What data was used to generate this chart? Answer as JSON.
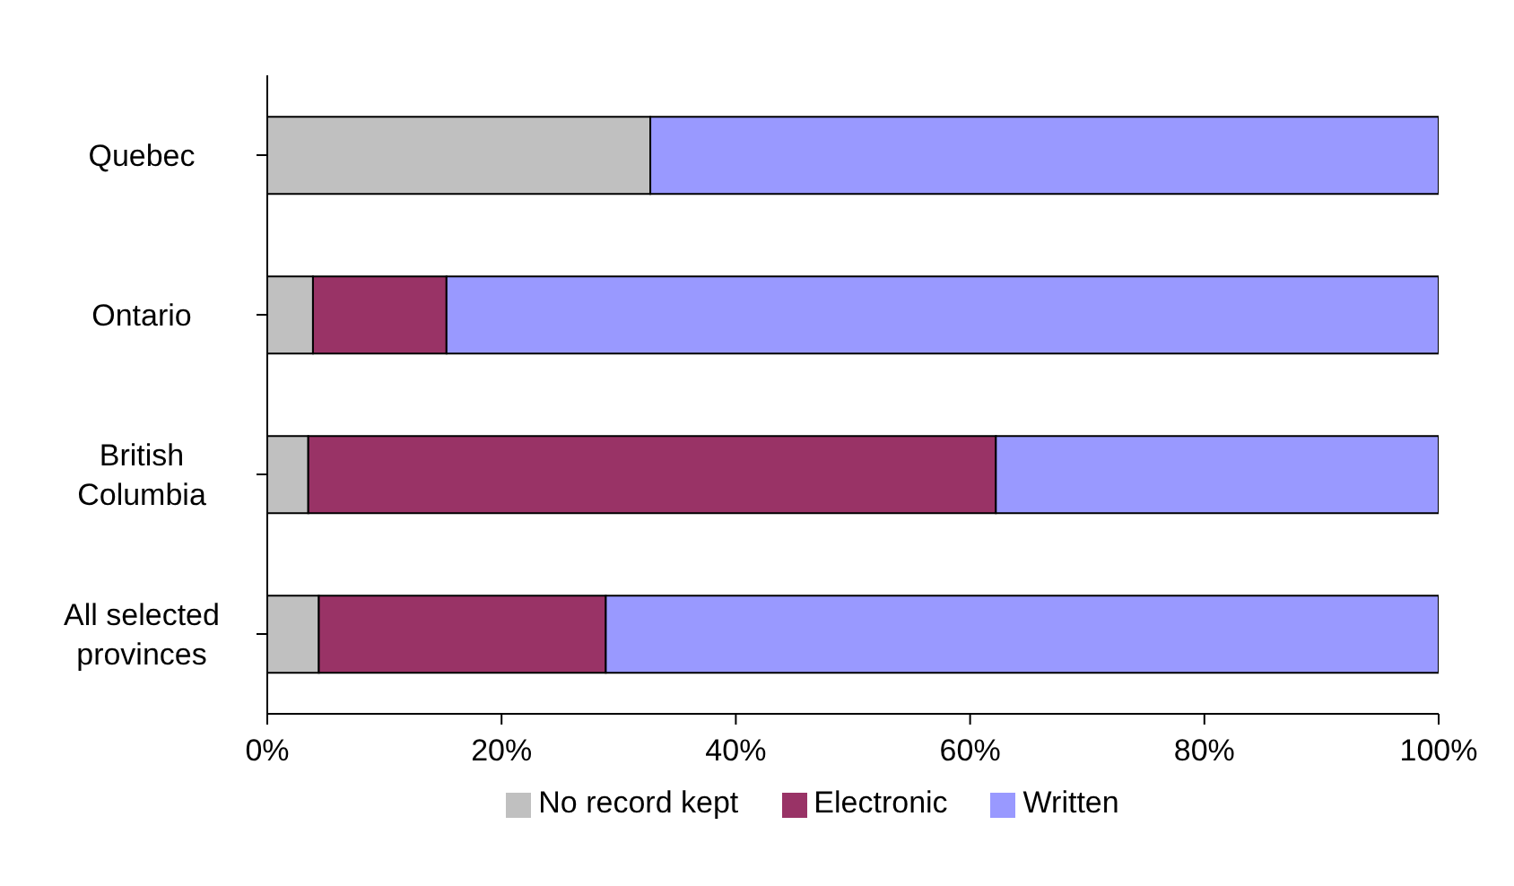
{
  "chart_data": {
    "type": "bar",
    "orientation": "horizontal",
    "stacked": true,
    "categories": [
      "Quebec",
      "Ontario",
      "British Columbia",
      "All selected provinces"
    ],
    "series": [
      {
        "name": "No record kept",
        "color": "#c0c0c0",
        "values": [
          32.7,
          3.9,
          3.5,
          4.4
        ]
      },
      {
        "name": "Electronic",
        "color": "#993366",
        "values": [
          0,
          11.4,
          58.7,
          24.5
        ]
      },
      {
        "name": "Written",
        "color": "#9999ff",
        "values": [
          67.3,
          84.7,
          37.8,
          71.1
        ]
      }
    ],
    "xlim": [
      0,
      100
    ],
    "xticks": [
      {
        "value": 0,
        "label": "0%"
      },
      {
        "value": 20,
        "label": "20%"
      },
      {
        "value": 40,
        "label": "40%"
      },
      {
        "value": 60,
        "label": "60%"
      },
      {
        "value": 80,
        "label": "80%"
      },
      {
        "value": 100,
        "label": "100%"
      }
    ],
    "grid": false,
    "legend": "bottom"
  }
}
